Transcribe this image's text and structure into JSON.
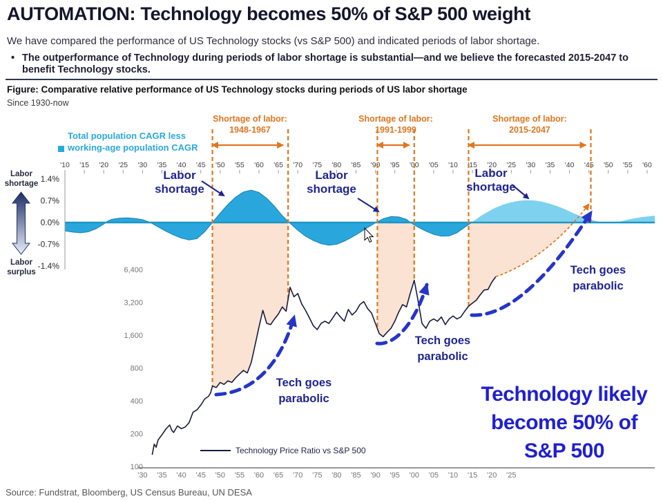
{
  "header": {
    "title": "AUTOMATION: Technology becomes 50% of S&P 500 weight",
    "subtitle": "We have compared the performance of US Technology stocks (vs S&P 500) and indicated periods of labor shortage.",
    "bullet_marker": "•",
    "bullet": "The outperformance of Technology during periods of labor shortage is substantial—and we believe the forecasted 2015-2047 to benefit Technology stocks."
  },
  "figure": {
    "caption": "Figure: Comparative relative performance of US Technology stocks during periods of US labor shortage",
    "subcaption": "Since 1930-now"
  },
  "left_axis": {
    "shortage_label": "Labor\nshortage",
    "surplus_label": "Labor\nsurplus",
    "tick_labels": [
      "1.4%",
      "0.7%",
      "0.0%",
      "-0.7%",
      "-1.4%"
    ]
  },
  "population_legend": {
    "line1": "Total population CAGR less",
    "line2": "working-age population CAGR"
  },
  "shortage_periods": [
    {
      "title": "Shortage of labor:",
      "years": "1948-1967",
      "from": 1948,
      "to": 1967.5
    },
    {
      "title": "Shortage of labor:",
      "years": "1991-1999",
      "from": 1990.5,
      "to": 2000
    },
    {
      "title": "Shortage of labor:",
      "years": "2015-2047",
      "from": 2014,
      "to": 2045.5
    }
  ],
  "annotations": {
    "labor_shortage": "Labor\nshortage",
    "tech_parabolic": "Tech goes\nparabolic",
    "callout": "Technology likely\nbecome 50% of\nS&P 500"
  },
  "price_legend": "Technology Price Ratio vs S&P 500",
  "source": "Source: Fundstrat, Bloomberg, US Census Bureau, UN DESA",
  "colors": {
    "cyan": "#29a9e0",
    "wave_historical": "#29a7dd",
    "wave_forecast": "#7fd2ef",
    "wave_outline": "#1d7fb0",
    "zero_line": "#1b97c3",
    "orange": "#e0761f",
    "peach": "#fae3d2",
    "navy_annotation": "#1f2490",
    "arrow_blue": "#2535c8",
    "price_line": "#171a3e",
    "callout_blue": "#2020cf",
    "axis_gray": "#757575",
    "top_tick_gray": "#3d3d3d"
  },
  "chart_data": [
    {
      "id": "population_gap",
      "type": "area",
      "title": "Total population CAGR less working-age population CAGR",
      "units": "%",
      "ylim": [
        -1.4,
        1.4
      ],
      "y_ticks": [
        1.4,
        0.7,
        0,
        -0.7,
        -1.4
      ],
      "x_start": 1910,
      "x_end": 2060,
      "x_tick_step": 5,
      "historical": [
        [
          1910,
          -0.27
        ],
        [
          1912,
          -0.31
        ],
        [
          1914,
          -0.33
        ],
        [
          1916,
          -0.3
        ],
        [
          1918,
          -0.2
        ],
        [
          1920,
          -0.05
        ],
        [
          1921,
          0.04
        ],
        [
          1922,
          0.1
        ],
        [
          1924,
          0.14
        ],
        [
          1926,
          0.15
        ],
        [
          1928,
          0.13
        ],
        [
          1930,
          0.09
        ],
        [
          1932,
          0.0
        ],
        [
          1934,
          -0.14
        ],
        [
          1936,
          -0.28
        ],
        [
          1938,
          -0.4
        ],
        [
          1940,
          -0.5
        ],
        [
          1942,
          -0.56
        ],
        [
          1944,
          -0.52
        ],
        [
          1946,
          -0.3
        ],
        [
          1948,
          0.0
        ],
        [
          1950,
          0.3
        ],
        [
          1952,
          0.58
        ],
        [
          1954,
          0.82
        ],
        [
          1956,
          0.98
        ],
        [
          1958,
          1.04
        ],
        [
          1960,
          0.97
        ],
        [
          1962,
          0.78
        ],
        [
          1964,
          0.52
        ],
        [
          1966,
          0.22
        ],
        [
          1968,
          -0.02
        ],
        [
          1970,
          -0.25
        ],
        [
          1972,
          -0.44
        ],
        [
          1974,
          -0.58
        ],
        [
          1976,
          -0.68
        ],
        [
          1978,
          -0.73
        ],
        [
          1980,
          -0.7
        ],
        [
          1982,
          -0.6
        ],
        [
          1984,
          -0.47
        ],
        [
          1986,
          -0.32
        ],
        [
          1988,
          -0.16
        ],
        [
          1990,
          -0.01
        ],
        [
          1992,
          0.12
        ],
        [
          1994,
          0.19
        ],
        [
          1996,
          0.18
        ],
        [
          1998,
          0.1
        ],
        [
          1999,
          0.0
        ],
        [
          2001,
          -0.15
        ],
        [
          2003,
          -0.28
        ],
        [
          2005,
          -0.38
        ],
        [
          2007,
          -0.44
        ],
        [
          2009,
          -0.43
        ],
        [
          2011,
          -0.33
        ],
        [
          2013,
          -0.15
        ],
        [
          2015,
          0.02
        ]
      ],
      "forecast": [
        [
          2015,
          0.02
        ],
        [
          2017,
          0.2
        ],
        [
          2019,
          0.35
        ],
        [
          2021,
          0.48
        ],
        [
          2023,
          0.58
        ],
        [
          2025,
          0.65
        ],
        [
          2027,
          0.7
        ],
        [
          2029,
          0.72
        ],
        [
          2031,
          0.71
        ],
        [
          2033,
          0.67
        ],
        [
          2035,
          0.6
        ],
        [
          2037,
          0.52
        ],
        [
          2039,
          0.42
        ],
        [
          2041,
          0.3
        ],
        [
          2043,
          0.2
        ],
        [
          2045,
          0.12
        ],
        [
          2047,
          0.04
        ],
        [
          2049,
          -0.01
        ],
        [
          2051,
          -0.02
        ],
        [
          2053,
          0.03
        ],
        [
          2055,
          0.09
        ],
        [
          2057,
          0.14
        ],
        [
          2059,
          0.18
        ],
        [
          2062,
          0.22
        ]
      ]
    },
    {
      "id": "tech_price_ratio",
      "type": "line",
      "title": "Technology Price Ratio vs S&P 500",
      "y_scale": "log2",
      "y_ticks": [
        6400,
        3200,
        1600,
        800,
        400,
        200,
        100
      ],
      "x_ticks_start": 1930,
      "x_ticks_end": 2025,
      "x_tick_step": 5,
      "points": [
        [
          1932.5,
          128
        ],
        [
          1933,
          160
        ],
        [
          1933.5,
          150
        ],
        [
          1934,
          175
        ],
        [
          1935,
          195
        ],
        [
          1936,
          220
        ],
        [
          1937,
          240
        ],
        [
          1937.5,
          215
        ],
        [
          1938,
          205
        ],
        [
          1939,
          235
        ],
        [
          1940,
          222
        ],
        [
          1941,
          230
        ],
        [
          1942,
          252
        ],
        [
          1943,
          315
        ],
        [
          1944,
          330
        ],
        [
          1945,
          365
        ],
        [
          1946,
          415
        ],
        [
          1947,
          440
        ],
        [
          1947.5,
          470
        ],
        [
          1948,
          545
        ],
        [
          1949,
          530
        ],
        [
          1950,
          590
        ],
        [
          1951,
          565
        ],
        [
          1952,
          610
        ],
        [
          1953,
          590
        ],
        [
          1954,
          650
        ],
        [
          1955,
          705
        ],
        [
          1956,
          760
        ],
        [
          1957,
          720
        ],
        [
          1958,
          900
        ],
        [
          1959,
          1300
        ],
        [
          1960,
          1900
        ],
        [
          1961,
          2700
        ],
        [
          1962,
          2050
        ],
        [
          1963,
          2000
        ],
        [
          1964,
          2250
        ],
        [
          1965,
          2500
        ],
        [
          1966,
          2900
        ],
        [
          1967,
          2650
        ],
        [
          1968,
          4400
        ],
        [
          1969,
          3600
        ],
        [
          1970,
          3850
        ],
        [
          1971,
          3100
        ],
        [
          1972,
          2700
        ],
        [
          1973,
          2300
        ],
        [
          1974,
          1950
        ],
        [
          1975,
          1800
        ],
        [
          1976,
          2050
        ],
        [
          1977,
          2150
        ],
        [
          1978,
          2050
        ],
        [
          1979,
          2300
        ],
        [
          1980,
          2600
        ],
        [
          1981,
          2350
        ],
        [
          1982,
          2150
        ],
        [
          1983,
          2750
        ],
        [
          1984,
          2450
        ],
        [
          1985,
          2650
        ],
        [
          1986,
          3050
        ],
        [
          1987,
          3250
        ],
        [
          1988,
          2800
        ],
        [
          1989,
          2550
        ],
        [
          1990,
          2050
        ],
        [
          1991,
          1650
        ],
        [
          1992,
          1550
        ],
        [
          1993,
          1700
        ],
        [
          1994,
          1850
        ],
        [
          1995,
          2150
        ],
        [
          1996,
          2600
        ],
        [
          1997,
          3050
        ],
        [
          1998,
          2900
        ],
        [
          1999,
          3900
        ],
        [
          2000,
          5100
        ],
        [
          2001,
          3300
        ],
        [
          2002,
          2050
        ],
        [
          2003,
          1850
        ],
        [
          2004,
          2150
        ],
        [
          2005,
          2250
        ],
        [
          2006,
          2150
        ],
        [
          2007,
          2350
        ],
        [
          2008,
          2000
        ],
        [
          2009,
          2250
        ],
        [
          2010,
          2400
        ],
        [
          2011,
          2250
        ],
        [
          2012,
          2350
        ],
        [
          2013,
          2650
        ],
        [
          2014,
          2950
        ],
        [
          2015,
          3150
        ],
        [
          2016,
          3350
        ],
        [
          2017,
          3750
        ],
        [
          2018,
          4150
        ],
        [
          2019,
          4200
        ],
        [
          2020,
          4900
        ],
        [
          2021,
          5500
        ]
      ]
    }
  ]
}
